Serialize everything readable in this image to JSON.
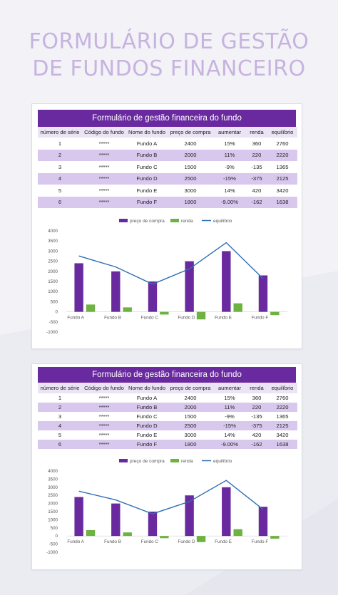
{
  "doc_title": {
    "line1": "FORMULÁRIO DE GESTÃO",
    "line2": "DE FUNDOS FINANCEIRO"
  },
  "colors": {
    "purple": "#6a2a9f",
    "green": "#6cb33f",
    "line": "#2f6fb3",
    "stripe": "#d9c8ee"
  },
  "sheets": [
    {
      "title": "Formulário de gestão financeira do fundo",
      "columns": [
        "número de série",
        "Código do fundo",
        "Nome do fundo",
        "preço de compra",
        "aumentar",
        "renda",
        "equilíbrio"
      ],
      "rows": [
        [
          "1",
          "*****",
          "Fundo A",
          "2400",
          "15%",
          "360",
          "2760"
        ],
        [
          "2",
          "*****",
          "Fundo B",
          "2000",
          "11%",
          "220",
          "2220"
        ],
        [
          "3",
          "*****",
          "Fundo C",
          "1500",
          "-9%",
          "-135",
          "1365"
        ],
        [
          "4",
          "*****",
          "Fundo D",
          "2500",
          "-15%",
          "-375",
          "2125"
        ],
        [
          "5",
          "*****",
          "Fundo E",
          "3000",
          "14%",
          "420",
          "3420"
        ],
        [
          "6",
          "*****",
          "Fundo F",
          "1800",
          "-9.00%",
          "-162",
          "1638"
        ]
      ]
    },
    {
      "title": "Formulário de gestão financeira do fundo",
      "columns": [
        "número de série",
        "Código do fundo",
        "Nome do fundo",
        "preço de compra",
        "aumentar",
        "renda",
        "equilíbrio"
      ],
      "rows": [
        [
          "1",
          "*****",
          "Fundo A",
          "2400",
          "15%",
          "360",
          "2760"
        ],
        [
          "2",
          "*****",
          "Fundo B",
          "2000",
          "11%",
          "220",
          "2220"
        ],
        [
          "3",
          "*****",
          "Fundo C",
          "1500",
          "-9%",
          "-135",
          "1365"
        ],
        [
          "4",
          "*****",
          "Fundo D",
          "2500",
          "-15%",
          "-375",
          "2125"
        ],
        [
          "5",
          "*****",
          "Fundo E",
          "3000",
          "14%",
          "420",
          "3420"
        ],
        [
          "6",
          "*****",
          "Fundo F",
          "1800",
          "-9.00%",
          "-162",
          "1638"
        ]
      ]
    }
  ],
  "chart_data": [
    {
      "type": "bar",
      "categories": [
        "Fundo A",
        "Fundo B",
        "Fundo C",
        "Fundo D",
        "Fundo E",
        "Fundo F"
      ],
      "series": [
        {
          "name": "preço de compra",
          "type": "bar",
          "values": [
            2400,
            2000,
            1500,
            2500,
            3000,
            1800
          ]
        },
        {
          "name": "renda",
          "type": "bar",
          "values": [
            360,
            220,
            -135,
            -375,
            420,
            -162
          ]
        },
        {
          "name": "equilíbrio",
          "type": "line",
          "values": [
            2760,
            2220,
            1365,
            2125,
            3420,
            1638
          ]
        }
      ],
      "yticks": [
        "4000",
        "3500",
        "3000",
        "2500",
        "2000",
        "1500",
        "1000",
        "500",
        "0",
        "-500",
        "-1000"
      ],
      "ylim": [
        -1000,
        4000
      ],
      "legend": "top-center",
      "grid": false
    },
    {
      "type": "bar",
      "categories": [
        "Fundo A",
        "Fundo B",
        "Fundo C",
        "Fundo D",
        "Fundo E",
        "Fundo F"
      ],
      "series": [
        {
          "name": "preço de compra",
          "type": "bar",
          "values": [
            2400,
            2000,
            1500,
            2500,
            3000,
            1800
          ]
        },
        {
          "name": "renda",
          "type": "bar",
          "values": [
            360,
            220,
            -135,
            -375,
            420,
            -162
          ]
        },
        {
          "name": "equilíbrio",
          "type": "line",
          "values": [
            2760,
            2220,
            1365,
            2125,
            3420,
            1638
          ]
        }
      ],
      "yticks": [
        "4000",
        "3500",
        "3000",
        "2500",
        "2000",
        "1500",
        "1000",
        "500",
        "0",
        "-500",
        "-1000"
      ],
      "ylim": [
        -1000,
        4000
      ],
      "legend": "top-center",
      "grid": false
    }
  ]
}
